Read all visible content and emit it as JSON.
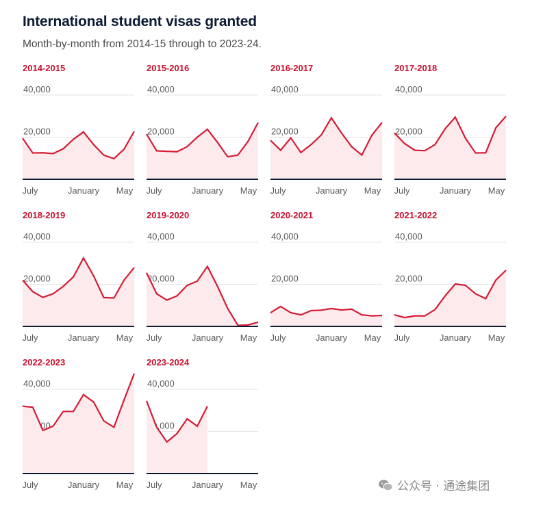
{
  "header": {
    "title": "International student visas granted",
    "subtitle": "Month-by-month from 2014-15 through to 2023-24."
  },
  "colors": {
    "line": "#d41b35",
    "fill": "#fdeaec",
    "grid": "#e6e6e6",
    "baseline": "#0c1a33",
    "label": "#c8102e",
    "tick": "#5a5a5a"
  },
  "watermark": {
    "text": "公众号 · 通途集团",
    "icon": "wechat-icon"
  },
  "chart_data": [
    {
      "type": "area",
      "title": "2014-2015",
      "x": [
        "Jul",
        "Aug",
        "Sep",
        "Oct",
        "Nov",
        "Dec",
        "Jan",
        "Feb",
        "Mar",
        "Apr",
        "May",
        "Jun"
      ],
      "values": [
        19500,
        12500,
        12600,
        12200,
        14500,
        19000,
        22500,
        16500,
        11500,
        9800,
        14300,
        22800
      ],
      "yticks": [
        "40,000",
        "20,000",
        "0"
      ],
      "xticks": [
        "July",
        "January",
        "May"
      ],
      "ylim": [
        0,
        40000
      ],
      "grid": true
    },
    {
      "type": "area",
      "title": "2015-2016",
      "x": [
        "Jul",
        "Aug",
        "Sep",
        "Oct",
        "Nov",
        "Dec",
        "Jan",
        "Feb",
        "Mar",
        "Apr",
        "May",
        "Jun"
      ],
      "values": [
        21500,
        13500,
        13300,
        13100,
        15500,
        20000,
        23800,
        17500,
        10700,
        11500,
        18000,
        27000
      ],
      "yticks": [
        "40,000",
        "20,000",
        "0"
      ],
      "xticks": [
        "July",
        "January",
        "May"
      ],
      "ylim": [
        0,
        40000
      ],
      "grid": true
    },
    {
      "type": "area",
      "title": "2016-2017",
      "x": [
        "Jul",
        "Aug",
        "Sep",
        "Oct",
        "Nov",
        "Dec",
        "Jan",
        "Feb",
        "Mar",
        "Apr",
        "May",
        "Jun"
      ],
      "values": [
        18500,
        13800,
        19700,
        12700,
        16500,
        21000,
        29200,
        22000,
        15500,
        11500,
        21000,
        27000
      ],
      "yticks": [
        "40,000",
        "20,000",
        "0"
      ],
      "xticks": [
        "July",
        "January",
        "May"
      ],
      "ylim": [
        0,
        40000
      ],
      "grid": true
    },
    {
      "type": "area",
      "title": "2017-2018",
      "x": [
        "Jul",
        "Aug",
        "Sep",
        "Oct",
        "Nov",
        "Dec",
        "Jan",
        "Feb",
        "Mar",
        "Apr",
        "May",
        "Jun"
      ],
      "values": [
        22000,
        17000,
        13800,
        13600,
        16500,
        24000,
        29500,
        19500,
        12500,
        12600,
        24500,
        30000
      ],
      "yticks": [
        "40,000",
        "20,000",
        "0"
      ],
      "xticks": [
        "July",
        "January",
        "May"
      ],
      "ylim": [
        0,
        40000
      ],
      "grid": true
    },
    {
      "type": "area",
      "title": "2018-2019",
      "x": [
        "Jul",
        "Aug",
        "Sep",
        "Oct",
        "Nov",
        "Dec",
        "Jan",
        "Feb",
        "Mar",
        "Apr",
        "May",
        "Jun"
      ],
      "values": [
        22000,
        16500,
        13800,
        15500,
        19000,
        23500,
        32500,
        24000,
        13700,
        13500,
        22000,
        28000
      ],
      "yticks": [
        "40,000",
        "20,000",
        "0"
      ],
      "xticks": [
        "July",
        "January",
        "May"
      ],
      "ylim": [
        0,
        40000
      ],
      "grid": true
    },
    {
      "type": "area",
      "title": "2019-2020",
      "x": [
        "Jul",
        "Aug",
        "Sep",
        "Oct",
        "Nov",
        "Dec",
        "Jan",
        "Feb",
        "Mar",
        "Apr",
        "May",
        "Jun"
      ],
      "values": [
        25500,
        15500,
        12500,
        14500,
        19500,
        21500,
        28500,
        19000,
        8500,
        500,
        700,
        2000
      ],
      "yticks": [
        "40,000",
        "20,000",
        "0"
      ],
      "xticks": [
        "July",
        "January",
        "May"
      ],
      "ylim": [
        0,
        40000
      ],
      "grid": true
    },
    {
      "type": "area",
      "title": "2020-2021",
      "x": [
        "Jul",
        "Aug",
        "Sep",
        "Oct",
        "Nov",
        "Dec",
        "Jan",
        "Feb",
        "Mar",
        "Apr",
        "May",
        "Jun"
      ],
      "values": [
        6500,
        9500,
        6500,
        5500,
        7500,
        7700,
        8500,
        7800,
        8200,
        5500,
        5000,
        5200
      ],
      "yticks": [
        "40,000",
        "20,000",
        "0"
      ],
      "xticks": [
        "July",
        "January",
        "May"
      ],
      "ylim": [
        0,
        40000
      ],
      "grid": true
    },
    {
      "type": "area",
      "title": "2021-2022",
      "x": [
        "Jul",
        "Aug",
        "Sep",
        "Oct",
        "Nov",
        "Dec",
        "Jan",
        "Feb",
        "Mar",
        "Apr",
        "May",
        "Jun"
      ],
      "values": [
        5500,
        4200,
        5000,
        5000,
        8000,
        14500,
        20200,
        19500,
        15500,
        13200,
        22000,
        26700
      ],
      "yticks": [
        "40,000",
        "20,000",
        "0"
      ],
      "xticks": [
        "July",
        "January",
        "May"
      ],
      "ylim": [
        0,
        40000
      ],
      "grid": true
    },
    {
      "type": "area",
      "title": "2022-2023",
      "x": [
        "Jul",
        "Aug",
        "Sep",
        "Oct",
        "Nov",
        "Dec",
        "Jan",
        "Feb",
        "Mar",
        "Apr",
        "May",
        "Jun"
      ],
      "values": [
        32000,
        31500,
        20500,
        22500,
        29500,
        29500,
        37500,
        34000,
        25000,
        22000,
        35000,
        47500
      ],
      "yticks": [
        "40,000",
        "20,000",
        "0"
      ],
      "xticks": [
        "July",
        "January",
        "May"
      ],
      "ylim": [
        0,
        40000
      ],
      "grid": true
    },
    {
      "type": "area",
      "title": "2023-2024",
      "x": [
        "Jul",
        "Aug",
        "Sep",
        "Oct",
        "Nov",
        "Dec",
        "Jan"
      ],
      "values": [
        34500,
        22000,
        15000,
        19000,
        26000,
        22500,
        32000
      ],
      "yticks": [
        "40,000",
        "20,000",
        "0"
      ],
      "xticks": [
        "July",
        "January",
        "May"
      ],
      "ylim": [
        0,
        40000
      ],
      "grid": true
    }
  ]
}
